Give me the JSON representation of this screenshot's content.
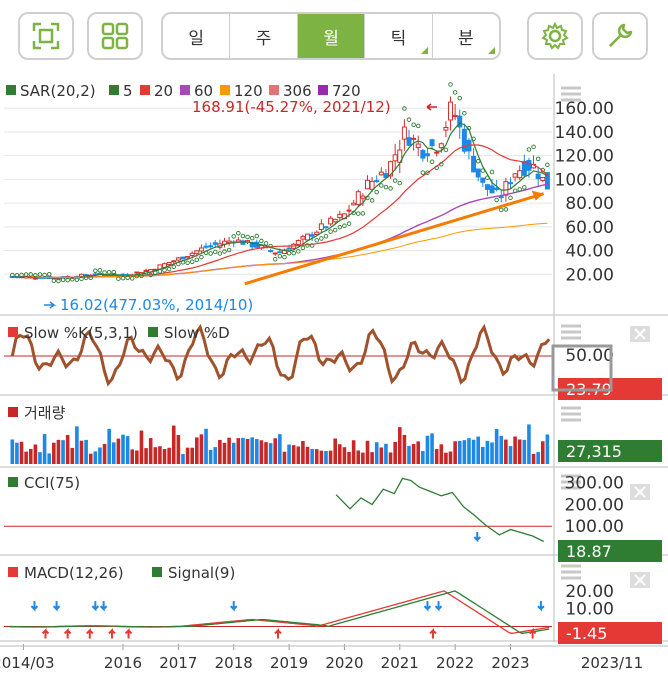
{
  "toolbar": {
    "period_tabs": [
      "일",
      "주",
      "월",
      "틱",
      "분"
    ],
    "active_tab": "월",
    "colors": {
      "active": "#7cb342",
      "border": "#cfcfcf"
    },
    "icons": [
      "fullscreen-icon",
      "grid-icon",
      "settings-icon",
      "wrench-icon"
    ]
  },
  "chart_data": [
    {
      "type": "candlestick",
      "panel": "price",
      "legend": [
        {
          "label": "SAR(20,2)",
          "color": "#2e7d32"
        },
        {
          "label": "5",
          "color": "#2e7d32"
        },
        {
          "label": "20",
          "color": "#e53935"
        },
        {
          "label": "60",
          "color": "#ab47bc"
        },
        {
          "label": "120",
          "color": "#ff9800"
        },
        {
          "label": "306",
          "color": "#e57373"
        },
        {
          "label": "720",
          "color": "#9c27b0"
        }
      ],
      "y_ticks": [
        "160.00",
        "140.00",
        "120.00",
        "100.00",
        "80.00",
        "60.00",
        "40.00",
        "20.00"
      ],
      "ylim": [
        0,
        172
      ],
      "annotations": {
        "high": "168.91(-45.27%, 2021/12)",
        "low": "16.02(477.03%, 2014/10)"
      },
      "close_series": [
        {
          "x": 2014.0,
          "y": 18
        },
        {
          "x": 2014.8,
          "y": 17
        },
        {
          "x": 2015.5,
          "y": 20
        },
        {
          "x": 2016.0,
          "y": 19
        },
        {
          "x": 2016.5,
          "y": 24
        },
        {
          "x": 2017.0,
          "y": 33
        },
        {
          "x": 2017.5,
          "y": 43
        },
        {
          "x": 2018.0,
          "y": 49
        },
        {
          "x": 2018.4,
          "y": 44
        },
        {
          "x": 2018.8,
          "y": 38
        },
        {
          "x": 2019.2,
          "y": 48
        },
        {
          "x": 2019.6,
          "y": 60
        },
        {
          "x": 2020.0,
          "y": 70
        },
        {
          "x": 2020.4,
          "y": 95
        },
        {
          "x": 2020.8,
          "y": 110
        },
        {
          "x": 2021.1,
          "y": 140
        },
        {
          "x": 2021.4,
          "y": 125
        },
        {
          "x": 2021.7,
          "y": 130
        },
        {
          "x": 2021.95,
          "y": 162
        },
        {
          "x": 2022.2,
          "y": 125
        },
        {
          "x": 2022.5,
          "y": 95
        },
        {
          "x": 2022.8,
          "y": 85
        },
        {
          "x": 2023.1,
          "y": 108
        },
        {
          "x": 2023.4,
          "y": 112
        },
        {
          "x": 2023.7,
          "y": 92
        }
      ]
    },
    {
      "type": "line",
      "panel": "stochastic",
      "legend": [
        {
          "label": "Slow %K(5,3,1)",
          "color": "#e53935"
        },
        {
          "label": "Slow %D",
          "color": "#2e7d32"
        }
      ],
      "y_ticks": [
        "50.00"
      ],
      "current_value": "23.79",
      "ylim": [
        0,
        100
      ]
    },
    {
      "type": "bar",
      "panel": "volume",
      "legend": [
        {
          "label": "거래량",
          "color": "#c62828"
        }
      ],
      "current_value": "27,315"
    },
    {
      "type": "line",
      "panel": "cci",
      "legend": [
        {
          "label": "CCI(75)",
          "color": "#2e7d32"
        }
      ],
      "y_ticks": [
        "300.00",
        "200.00",
        "100.00"
      ],
      "current_value": "18.87",
      "ylim": [
        0,
        340
      ]
    },
    {
      "type": "line",
      "panel": "macd",
      "legend": [
        {
          "label": "MACD(12,26)",
          "color": "#e53935"
        },
        {
          "label": "Signal(9)",
          "color": "#2e7d32"
        }
      ],
      "y_ticks": [
        "20.00",
        "10.00"
      ],
      "current_value": "-1.45",
      "ylim": [
        -2,
        25
      ]
    }
  ],
  "x_axis": {
    "labels": [
      {
        "text": "2014/03",
        "x": 2014.2
      },
      {
        "text": "2016",
        "x": 2016.0
      },
      {
        "text": "2017",
        "x": 2017.0
      },
      {
        "text": "2018",
        "x": 2018.0
      },
      {
        "text": "2019",
        "x": 2019.0
      },
      {
        "text": "2020",
        "x": 2020.0
      },
      {
        "text": "2021",
        "x": 2021.0
      },
      {
        "text": "2022",
        "x": 2022.0
      },
      {
        "text": "2023",
        "x": 2023.0
      },
      {
        "text": "2023/11",
        "x": 2024.5
      }
    ]
  },
  "side_badges": {
    "stoch": "23.79",
    "volume": "27,315",
    "cci": "18.87",
    "macd": "-1.45"
  }
}
